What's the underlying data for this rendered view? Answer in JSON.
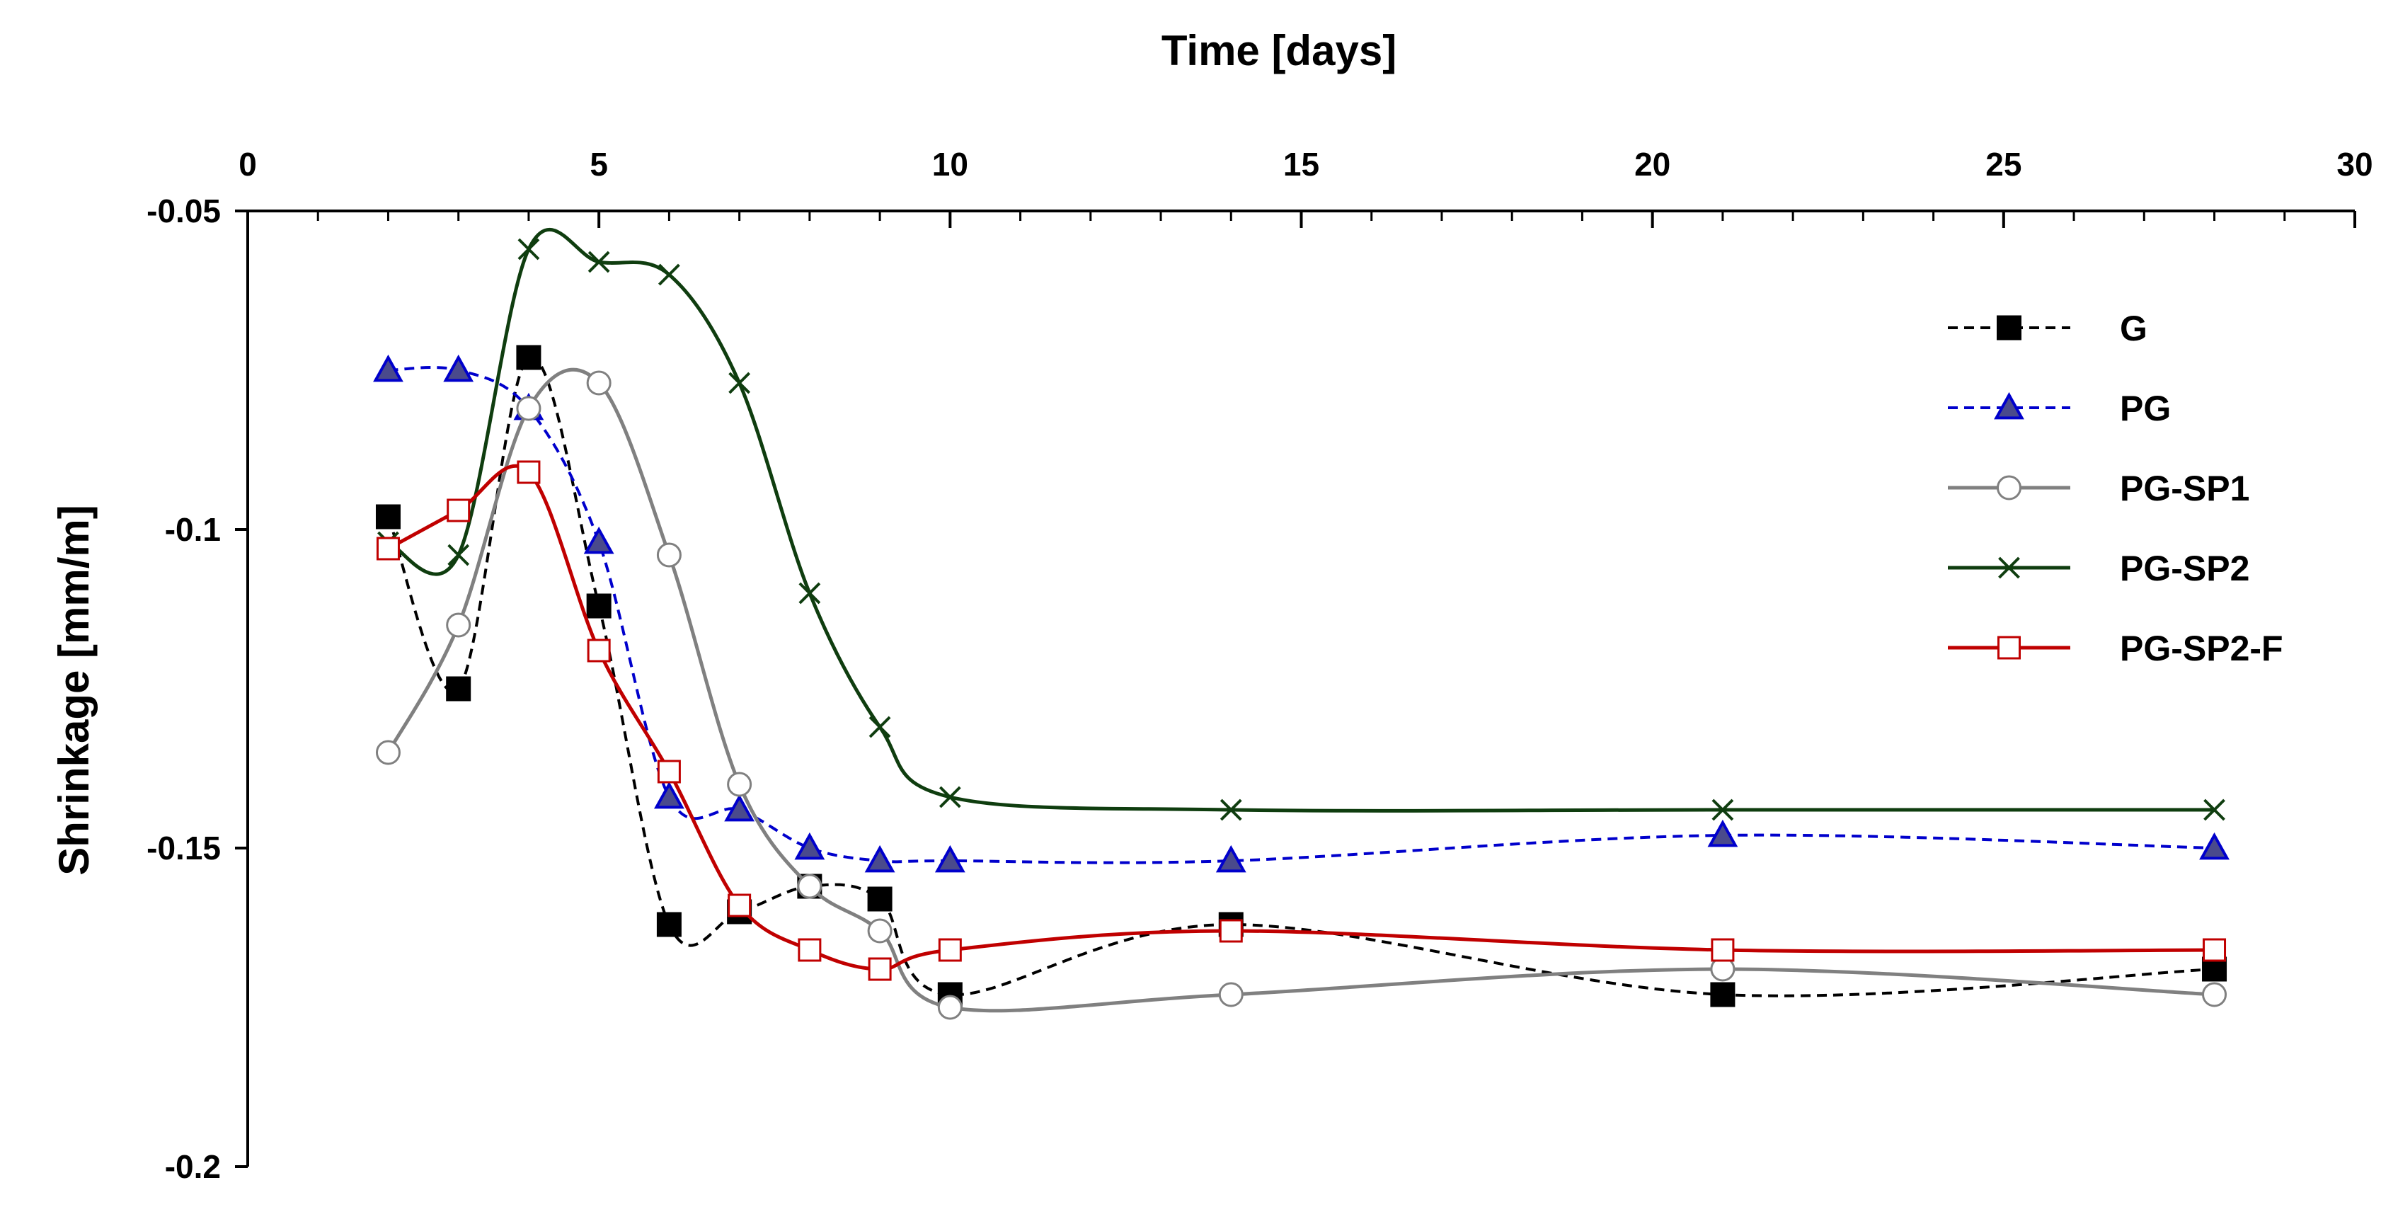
{
  "chart_data": {
    "type": "line",
    "title": "",
    "xlabel": "Time [days]",
    "ylabel": "Shrinkage  [mm/m]",
    "x_axis_position": "top",
    "xlim": [
      0,
      30
    ],
    "ylim": [
      -0.2,
      -0.05
    ],
    "x_major_step": 5,
    "x_minor_step": 1,
    "y_major_step": 0.05,
    "x_ticks": [
      "0",
      "5",
      "10",
      "15",
      "20",
      "25",
      "30"
    ],
    "y_ticks": [
      "-0.05",
      "-0.1",
      "-0.15",
      "-0.2"
    ],
    "grid": false,
    "legend_position": "top-right",
    "series": [
      {
        "name": "G",
        "color": "#000000",
        "line_style": "dashed",
        "marker": "filled-square",
        "marker_fill": "#000000",
        "x": [
          2,
          3,
          4,
          5,
          6,
          7,
          8,
          9,
          10,
          14,
          21,
          28
        ],
        "y": [
          -0.098,
          -0.125,
          -0.073,
          -0.112,
          -0.162,
          -0.16,
          -0.156,
          -0.158,
          -0.173,
          -0.162,
          -0.173,
          -0.169
        ]
      },
      {
        "name": "PG",
        "color": "#0000cc",
        "line_style": "dashed",
        "marker": "filled-triangle",
        "marker_fill": "#4a4a8c",
        "x": [
          2,
          3,
          4,
          5,
          6,
          7,
          8,
          9,
          10,
          14,
          21,
          28
        ],
        "y": [
          -0.075,
          -0.075,
          -0.081,
          -0.102,
          -0.142,
          -0.144,
          -0.15,
          -0.152,
          -0.152,
          -0.152,
          -0.148,
          -0.15
        ]
      },
      {
        "name": "PG-SP1",
        "color": "#808080",
        "line_style": "solid",
        "marker": "open-circle",
        "marker_fill": "#ffffff",
        "x": [
          2,
          3,
          4,
          5,
          6,
          7,
          8,
          9,
          10,
          14,
          21,
          28
        ],
        "y": [
          -0.135,
          -0.115,
          -0.081,
          -0.077,
          -0.104,
          -0.14,
          -0.156,
          -0.163,
          -0.175,
          -0.173,
          -0.169,
          -0.173
        ]
      },
      {
        "name": "PG-SP2",
        "color": "#0f3d0f",
        "line_style": "solid",
        "marker": "x",
        "marker_fill": "none",
        "x": [
          2,
          3,
          4,
          5,
          6,
          7,
          8,
          9,
          10,
          14,
          21,
          28
        ],
        "y": [
          -0.102,
          -0.104,
          -0.056,
          -0.058,
          -0.06,
          -0.077,
          -0.11,
          -0.131,
          -0.142,
          -0.144,
          -0.144,
          -0.144
        ]
      },
      {
        "name": "PG-SP2-F",
        "color": "#c00000",
        "line_style": "solid",
        "marker": "open-square",
        "marker_fill": "#ffffff",
        "x": [
          2,
          3,
          4,
          5,
          6,
          7,
          8,
          9,
          10,
          14,
          21,
          28
        ],
        "y": [
          -0.103,
          -0.097,
          -0.091,
          -0.119,
          -0.138,
          -0.159,
          -0.166,
          -0.169,
          -0.166,
          -0.163,
          -0.166,
          -0.166
        ]
      }
    ]
  }
}
